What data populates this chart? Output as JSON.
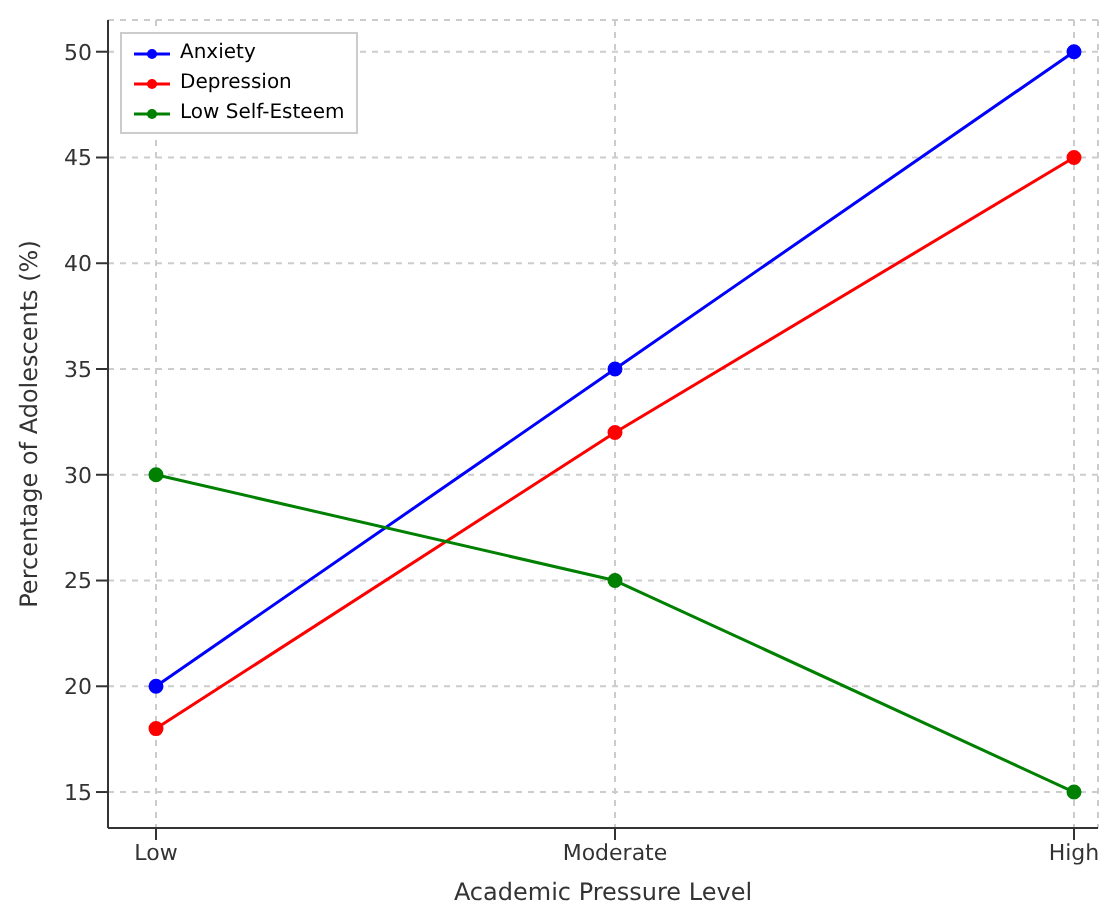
{
  "chart_data": {
    "type": "line",
    "xlabel": "Academic Pressure Level",
    "ylabel": "Percentage of Adolescents (%)",
    "categories": [
      "Low",
      "Moderate",
      "High"
    ],
    "series": [
      {
        "name": "Anxiety",
        "color": "#0000ff",
        "values": [
          20,
          35,
          50
        ]
      },
      {
        "name": "Depression",
        "color": "#ff0000",
        "values": [
          18,
          32,
          45
        ]
      },
      {
        "name": "Low Self-Esteem",
        "color": "#008000",
        "values": [
          30,
          25,
          15
        ]
      }
    ],
    "ylim": [
      13.3,
      51.5
    ],
    "yticks": [
      15,
      20,
      25,
      30,
      35,
      40,
      45,
      50
    ],
    "grid": true,
    "legend": "top left",
    "marker": "circle",
    "line_style": "solid"
  }
}
